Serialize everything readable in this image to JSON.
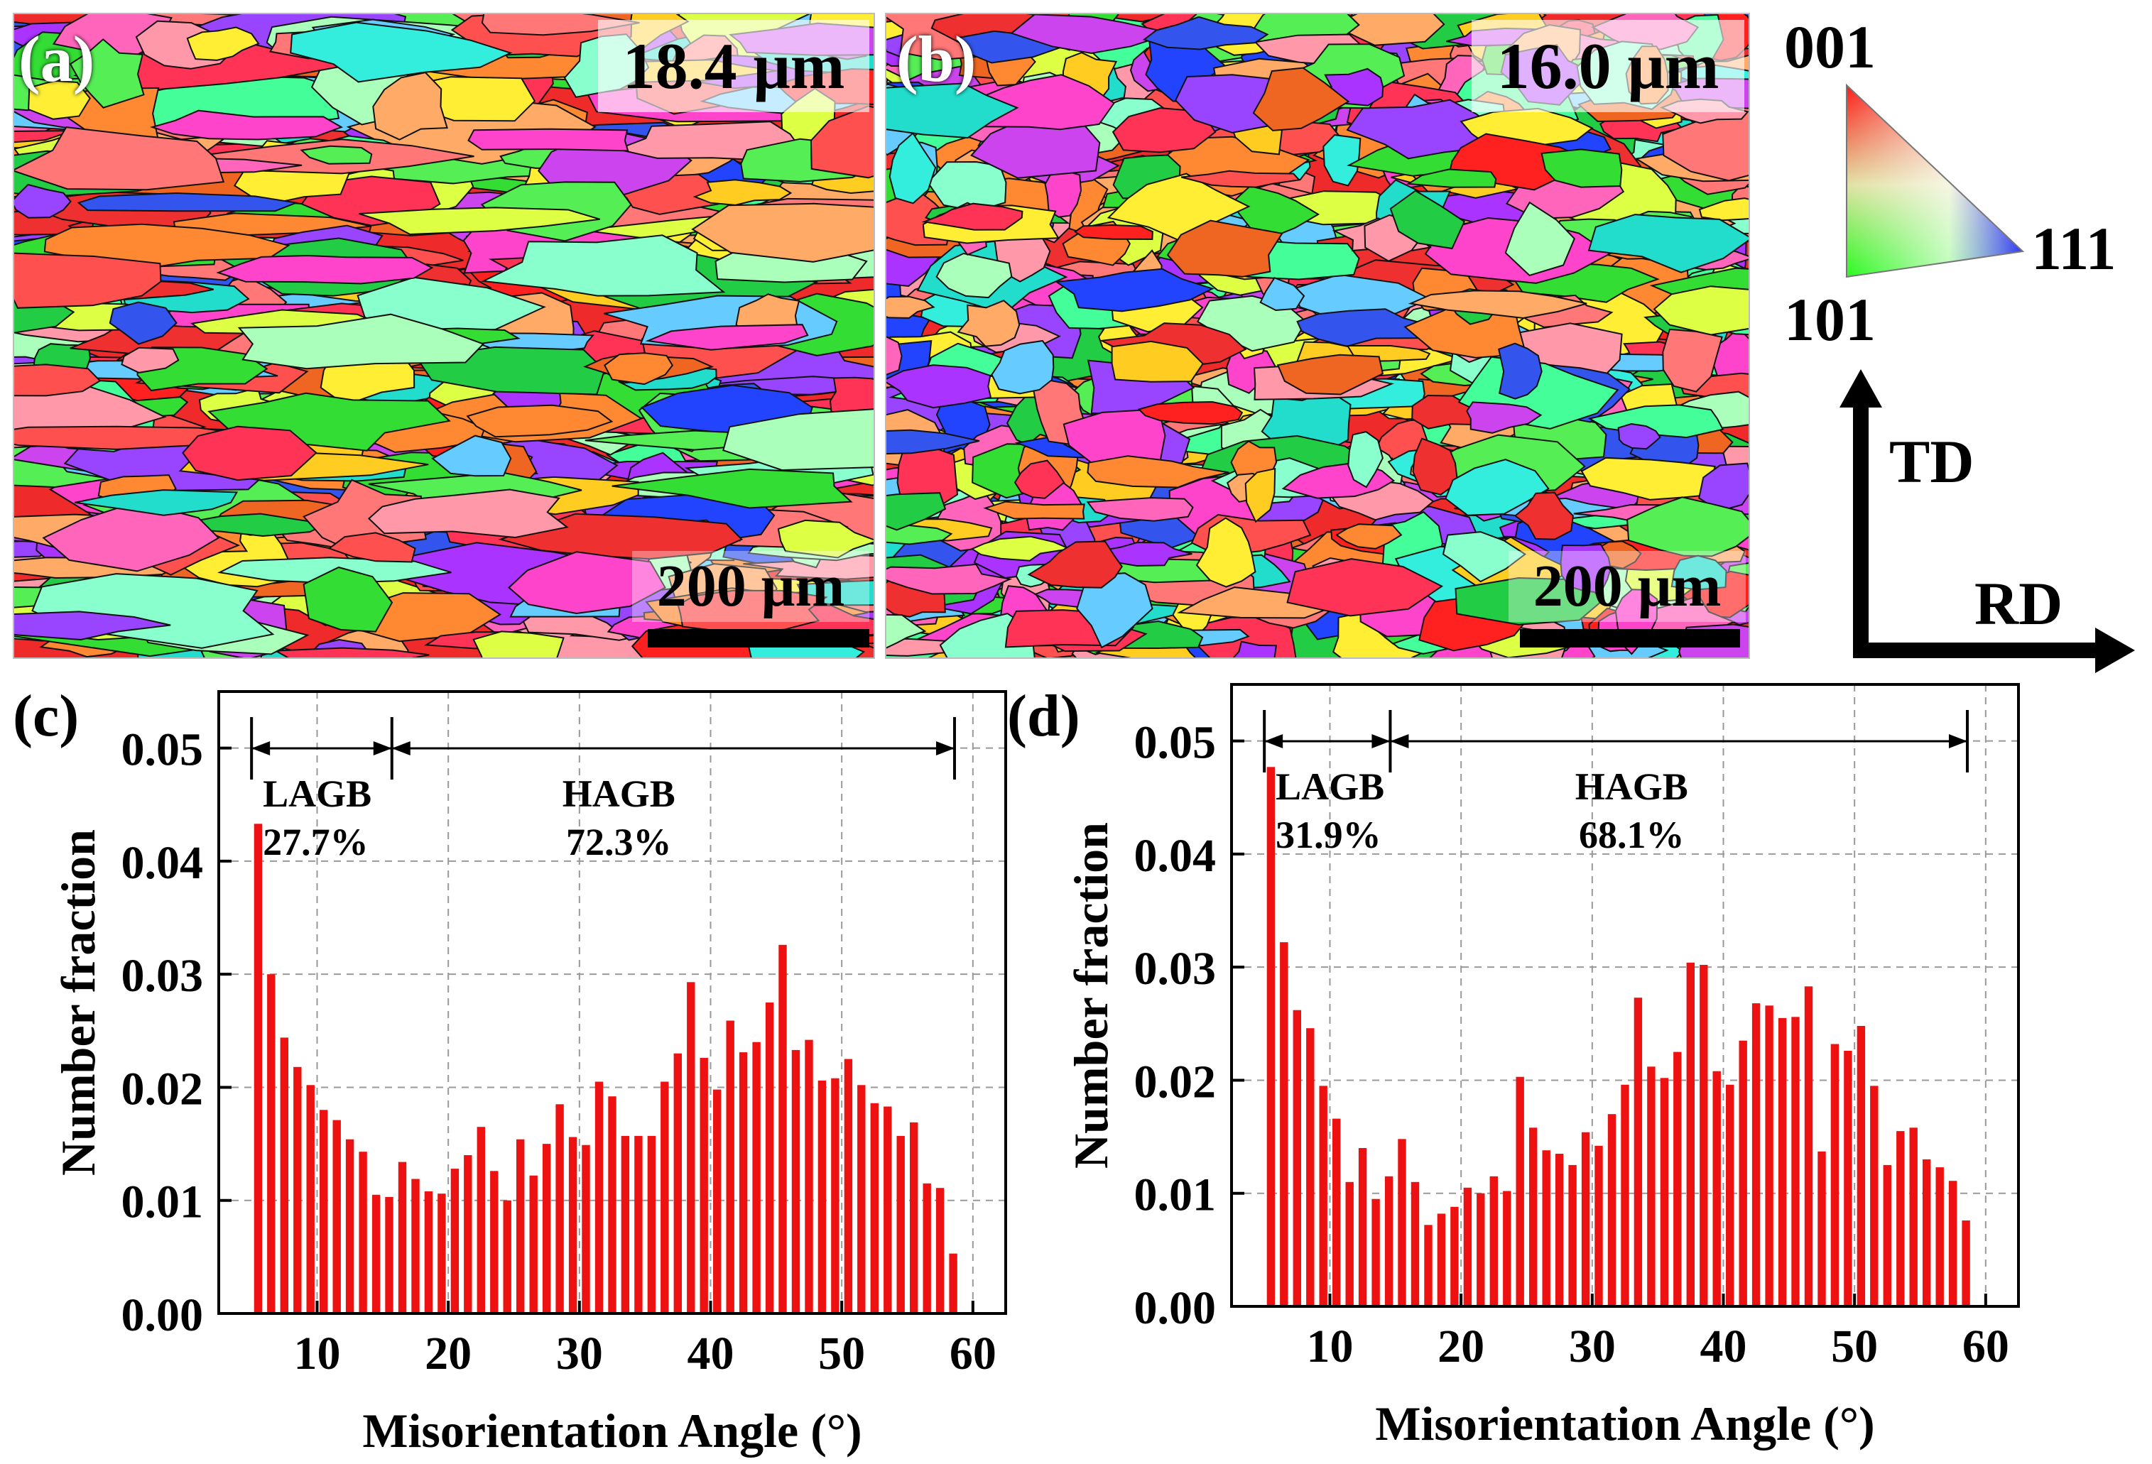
{
  "panels": {
    "a": {
      "label": "(a)",
      "grain_size": "18.4 μm",
      "scale": "200 μm"
    },
    "b": {
      "label": "(b)",
      "grain_size": "16.0 μm",
      "scale": "200 μm"
    },
    "c": {
      "label": "(c)"
    },
    "d": {
      "label": "(d)"
    }
  },
  "ipf_legend": {
    "pole_001": "001",
    "pole_101": "101",
    "pole_111": "111",
    "colors": {
      "001": "#ff0000",
      "101": "#00ff00",
      "111": "#0000ff"
    }
  },
  "axes_legend": {
    "td": "TD",
    "rd": "RD"
  },
  "chart_data": [
    {
      "id": "c",
      "type": "bar",
      "xlabel": "Misorientation Angle (°)",
      "ylabel": "Number fraction",
      "xlim": [
        2.5,
        62.5
      ],
      "ylim": [
        0,
        0.055
      ],
      "xticks": [
        "10",
        "20",
        "30",
        "40",
        "50",
        "60"
      ],
      "yticks": [
        "0.00",
        "0.01",
        "0.02",
        "0.03",
        "0.04",
        "0.05"
      ],
      "grid": true,
      "color": "#ee1111",
      "annotations": {
        "lagb_label": "LAGB",
        "lagb_pct": "27.7%",
        "hagb_label": "HAGB",
        "hagb_pct": "72.3%",
        "range_start": 5,
        "range_split": 15.7,
        "range_end": 58.6
      },
      "x": [
        5.5,
        6.5,
        7.5,
        8.5,
        9.5,
        10.5,
        11.5,
        12.5,
        13.5,
        14.5,
        15.5,
        16.5,
        17.5,
        18.5,
        19.5,
        20.5,
        21.5,
        22.5,
        23.5,
        24.5,
        25.5,
        26.5,
        27.5,
        28.5,
        29.5,
        30.5,
        31.5,
        32.5,
        33.5,
        34.5,
        35.5,
        36.5,
        37.5,
        38.5,
        39.5,
        40.5,
        41.5,
        42.5,
        43.5,
        44.5,
        45.5,
        46.5,
        47.5,
        48.5,
        49.5,
        50.5,
        51.5,
        52.5,
        53.5,
        54.5,
        55.5,
        56.5,
        57.5,
        58.5
      ],
      "values": [
        0.0433,
        0.03,
        0.0244,
        0.0218,
        0.0202,
        0.018,
        0.0171,
        0.0154,
        0.0143,
        0.0105,
        0.0103,
        0.0134,
        0.0119,
        0.0108,
        0.0106,
        0.0128,
        0.014,
        0.0165,
        0.0126,
        0.01,
        0.0154,
        0.0122,
        0.015,
        0.0185,
        0.0156,
        0.0149,
        0.0205,
        0.0192,
        0.0157,
        0.0157,
        0.0157,
        0.0205,
        0.023,
        0.0293,
        0.0226,
        0.0198,
        0.0259,
        0.0231,
        0.024,
        0.0275,
        0.0326,
        0.0233,
        0.0242,
        0.0206,
        0.0208,
        0.0225,
        0.0202,
        0.0186,
        0.0183,
        0.0157,
        0.0169,
        0.0115,
        0.0111,
        0.0053
      ]
    },
    {
      "id": "d",
      "type": "bar",
      "xlabel": "Misorientation Angle (°)",
      "ylabel": "Number fraction",
      "xlim": [
        2.5,
        62.5
      ],
      "ylim": [
        0,
        0.055
      ],
      "xticks": [
        "10",
        "20",
        "30",
        "40",
        "50",
        "60"
      ],
      "yticks": [
        "0.00",
        "0.01",
        "0.02",
        "0.03",
        "0.04",
        "0.05"
      ],
      "grid": true,
      "color": "#ee1111",
      "annotations": {
        "lagb_label": "LAGB",
        "lagb_pct": "31.9%",
        "hagb_label": "HAGB",
        "hagb_pct": "68.1%",
        "range_start": 5,
        "range_split": 14.6,
        "range_end": 58.6
      },
      "x": [
        5.5,
        6.5,
        7.5,
        8.5,
        9.5,
        10.5,
        11.5,
        12.5,
        13.5,
        14.5,
        15.5,
        16.5,
        17.5,
        18.5,
        19.5,
        20.5,
        21.5,
        22.5,
        23.5,
        24.5,
        25.5,
        26.5,
        27.5,
        28.5,
        29.5,
        30.5,
        31.5,
        32.5,
        33.5,
        34.5,
        35.5,
        36.5,
        37.5,
        38.5,
        39.5,
        40.5,
        41.5,
        42.5,
        43.5,
        44.5,
        45.5,
        46.5,
        47.5,
        48.5,
        49.5,
        50.5,
        51.5,
        52.5,
        53.5,
        54.5,
        55.5,
        56.5,
        57.5,
        58.5
      ],
      "values": [
        0.0477,
        0.0322,
        0.0262,
        0.0246,
        0.0195,
        0.0166,
        0.011,
        0.014,
        0.0095,
        0.0115,
        0.0148,
        0.011,
        0.0072,
        0.0082,
        0.0088,
        0.0105,
        0.01,
        0.0115,
        0.0102,
        0.0203,
        0.0158,
        0.0138,
        0.0135,
        0.0125,
        0.0154,
        0.0142,
        0.017,
        0.0196,
        0.0273,
        0.0212,
        0.0202,
        0.0225,
        0.0304,
        0.0302,
        0.0208,
        0.0196,
        0.0235,
        0.0268,
        0.0266,
        0.0255,
        0.0256,
        0.0283,
        0.0137,
        0.0232,
        0.0226,
        0.0248,
        0.0195,
        0.0125,
        0.0155,
        0.0158,
        0.013,
        0.0123,
        0.0111,
        0.0076
      ]
    }
  ]
}
